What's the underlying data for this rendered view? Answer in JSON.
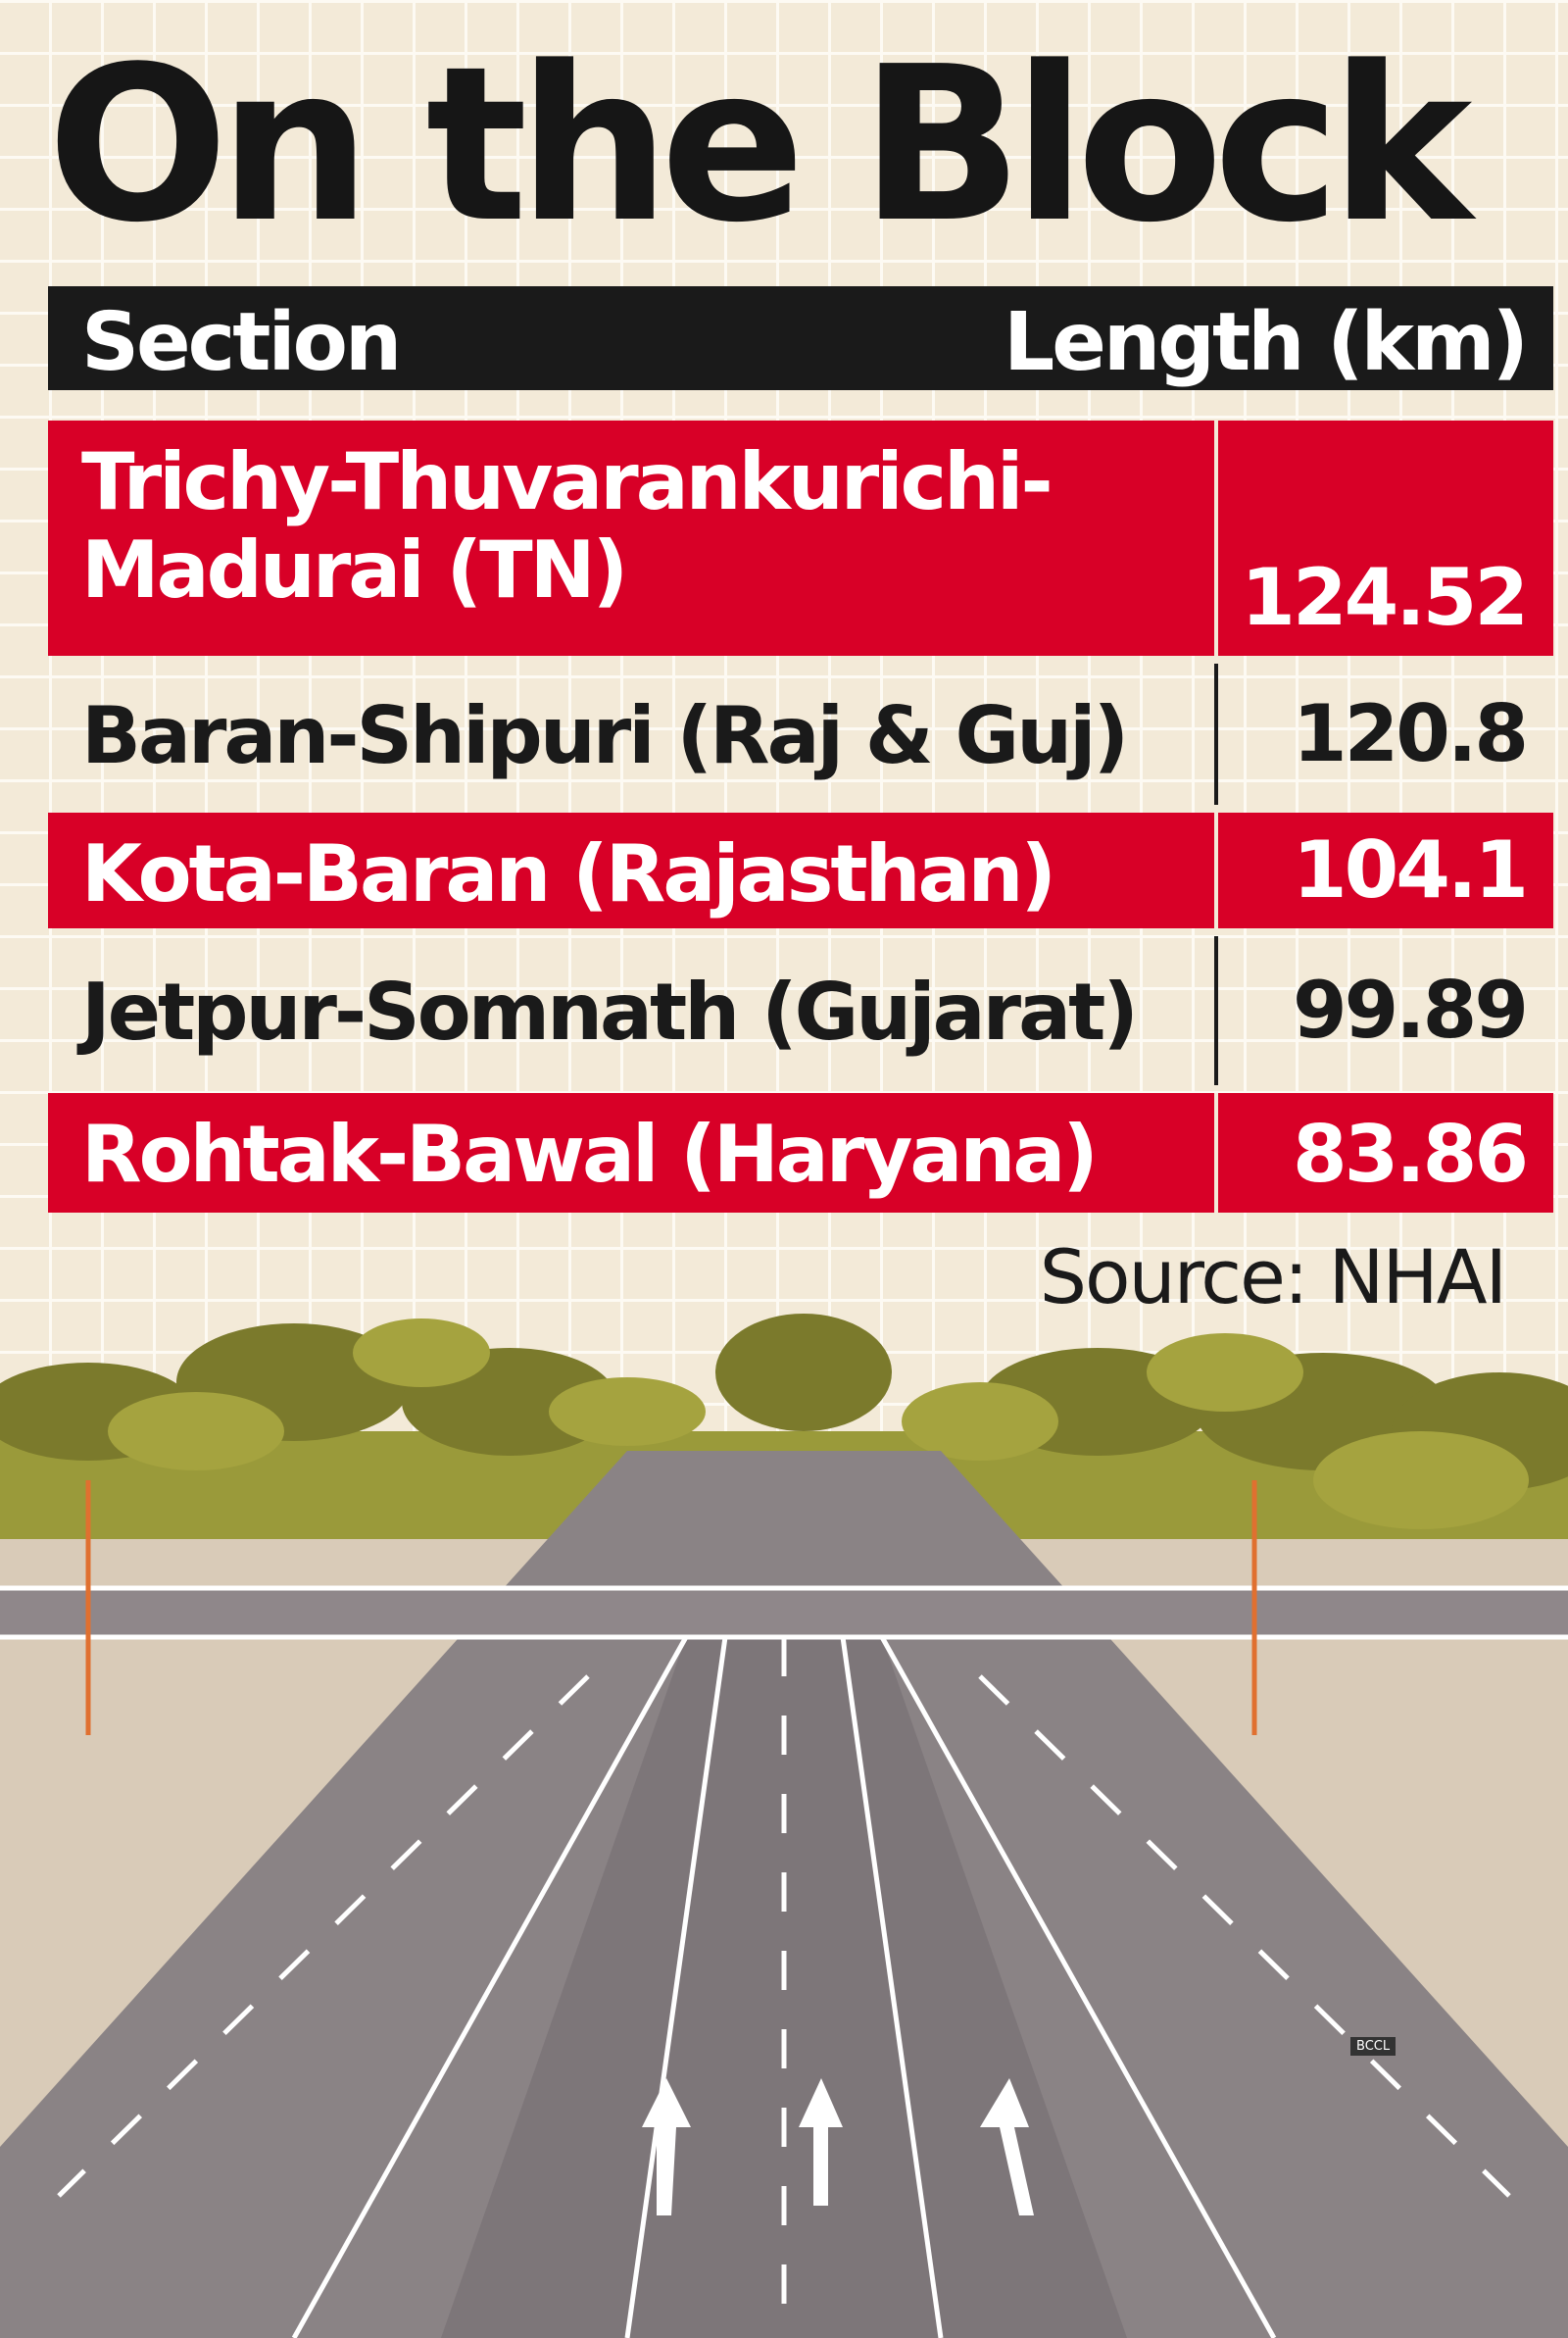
{
  "title": "On the Block",
  "table": {
    "header": [
      "Section",
      "Length (km)"
    ],
    "rows": [
      [
        "Trichy-Thuvarankurichi-Madurai (TN)",
        124.52
      ],
      [
        "Baran-Shipuri (Raj & Guj)",
        120.8
      ],
      [
        "Kota-Baran (Rajasthan)",
        104.1
      ],
      [
        "Jetpur-Somnath (Gujarat)",
        99.89
      ],
      [
        "Rohtak-Bawal (Haryana)",
        83.86
      ]
    ]
  },
  "source": "Source: NHAI",
  "credit": "BCCL"
}
